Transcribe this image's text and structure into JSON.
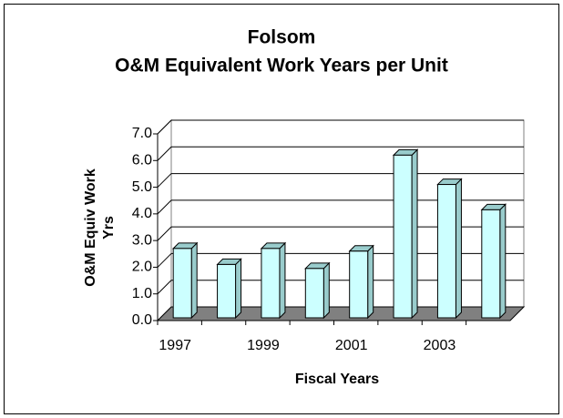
{
  "chart_data": {
    "type": "bar3d",
    "title": [
      "Folsom",
      "O&M Equivalent Work Years per Unit"
    ],
    "ylabel": [
      "O&M Equiv Work",
      "Yrs"
    ],
    "xlabel": "Fiscal Years",
    "categories": [
      "1997",
      null,
      "1999",
      null,
      "2001",
      null,
      "2003",
      null
    ],
    "values": [
      2.6,
      2.0,
      2.6,
      1.85,
      2.5,
      6.1,
      5.0,
      4.05
    ],
    "color": "#ccffff",
    "side_color": "#99cccc",
    "floor_color": "#808080",
    "ylim": [
      0,
      7
    ],
    "yticks": [
      {
        "value": 0,
        "label": "0.0"
      },
      {
        "value": 1,
        "label": "1.0"
      },
      {
        "value": 2,
        "label": "2.0"
      },
      {
        "value": 3,
        "label": "3.0"
      },
      {
        "value": 4,
        "label": "4.0"
      },
      {
        "value": 5,
        "label": "5.0"
      },
      {
        "value": 6,
        "label": "6.0"
      },
      {
        "value": 7,
        "label": "7.0"
      }
    ],
    "grid": true
  }
}
